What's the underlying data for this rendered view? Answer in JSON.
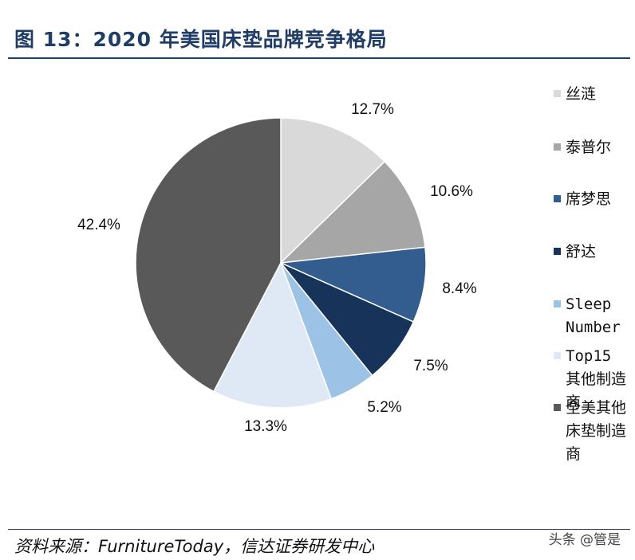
{
  "title": "图 13：2020 年美国床垫品牌竞争格局",
  "source": "资料来源：FurnitureToday，信达证券研发中心",
  "watermark": "头条 @管是",
  "chart_data": {
    "type": "pie",
    "slices": [
      {
        "name": "丝涟",
        "value": 12.7,
        "label": "12.7%",
        "color": "#d9d9d9"
      },
      {
        "name": "泰普尔",
        "value": 10.6,
        "label": "10.6%",
        "color": "#a6a6a6"
      },
      {
        "name": "席梦思",
        "value": 8.4,
        "label": "8.4%",
        "color": "#335c8f"
      },
      {
        "name": "舒达",
        "value": 7.5,
        "label": "7.5%",
        "color": "#17335a"
      },
      {
        "name": "Sleep Number",
        "value": 5.2,
        "label": "5.2%",
        "color": "#9cc2e6"
      },
      {
        "name": "Top15其他制造商",
        "value": 13.3,
        "label": "13.3%",
        "color": "#dfe9f6"
      },
      {
        "name": "全美其他床垫制造商",
        "value": 42.4,
        "label": "42.4%",
        "color": "#595959"
      }
    ],
    "start_angle": "12 o'clock",
    "direction": "clockwise",
    "legend_position": "right"
  }
}
